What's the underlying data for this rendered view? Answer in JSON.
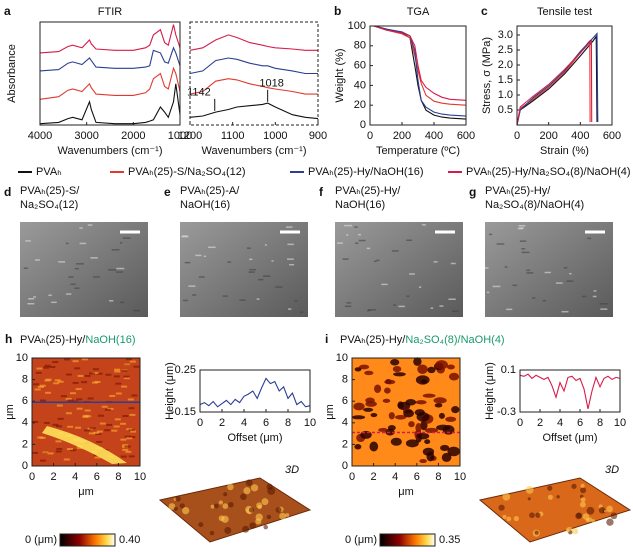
{
  "chart_data": [
    {
      "type": "line",
      "letter": "a",
      "title": "FTIR",
      "xlabel": "Wavenumbers (cm⁻¹)",
      "ylabel": "Absorbance",
      "xlim": [
        4000,
        1000
      ],
      "xticks": [
        4000,
        3000,
        2000,
        1000
      ],
      "ylim": [
        0,
        4
      ],
      "x": [
        4000,
        3600,
        3400,
        3300,
        3100,
        2940,
        2900,
        2800,
        2400,
        2000,
        1740,
        1650,
        1570,
        1420,
        1330,
        1250,
        1140,
        1090,
        1000
      ],
      "series": [
        {
          "name": "PVAₕ",
          "color": "#111111",
          "values": [
            0.05,
            0.1,
            0.25,
            0.3,
            0.2,
            0.9,
            0.6,
            0.1,
            0.05,
            0.05,
            0.1,
            0.15,
            0.2,
            0.7,
            0.5,
            0.3,
            0.9,
            1.6,
            0.4
          ]
        },
        {
          "name": "PVAₕ(25)-S/Na₂SO₄(12)",
          "color": "#e03a2f",
          "values": [
            1.0,
            1.1,
            1.35,
            1.4,
            1.3,
            1.6,
            1.45,
            1.2,
            1.15,
            1.15,
            1.25,
            1.4,
            1.8,
            2.0,
            1.5,
            1.4,
            2.2,
            2.0,
            1.3
          ]
        },
        {
          "name": "PVAₕ(25)-Hy/NaOH(16)",
          "color": "#2b3f93",
          "values": [
            2.1,
            2.15,
            2.4,
            2.45,
            2.35,
            2.6,
            2.5,
            2.25,
            2.2,
            2.2,
            2.25,
            2.3,
            2.9,
            2.8,
            2.45,
            2.4,
            3.0,
            2.8,
            2.3
          ]
        },
        {
          "name": "PVAₕ(25)-Hy/Na₂SO₄(8)/NaOH(4)",
          "color": "#d81b4a",
          "values": [
            2.8,
            2.85,
            3.05,
            3.1,
            3.0,
            3.3,
            3.15,
            2.95,
            2.9,
            2.9,
            3.0,
            3.1,
            3.5,
            3.7,
            3.2,
            3.1,
            3.9,
            3.5,
            3.0
          ]
        }
      ]
    },
    {
      "type": "line",
      "xlabel": "Wavenumbers (cm⁻¹)",
      "frame_style": "dashed",
      "xlim": [
        1200,
        900
      ],
      "xticks": [
        1200,
        1100,
        1000,
        900
      ],
      "ylim": [
        0,
        4
      ],
      "x": [
        1200,
        1170,
        1140,
        1110,
        1090,
        1060,
        1030,
        1018,
        1000,
        960,
        930,
        900
      ],
      "series": [
        {
          "color": "#111111",
          "values": [
            0.3,
            0.35,
            0.5,
            0.6,
            0.7,
            0.75,
            0.8,
            0.85,
            0.7,
            0.4,
            0.3,
            0.25
          ]
        },
        {
          "color": "#e03a2f",
          "values": [
            1.2,
            1.3,
            1.7,
            1.8,
            1.75,
            1.6,
            1.5,
            1.45,
            1.4,
            1.3,
            1.2,
            1.2
          ]
        },
        {
          "color": "#2b3f93",
          "values": [
            2.0,
            2.1,
            2.5,
            2.6,
            2.55,
            2.4,
            2.3,
            2.3,
            2.2,
            2.1,
            2.0,
            2.0
          ]
        },
        {
          "color": "#d81b4a",
          "values": [
            2.9,
            3.0,
            3.3,
            3.5,
            3.4,
            3.2,
            3.1,
            3.05,
            3.0,
            2.95,
            2.9,
            2.9
          ]
        }
      ],
      "annotations": [
        {
          "text": "1142",
          "x": 1142,
          "y": 0.55
        },
        {
          "text": "1018",
          "x": 1018,
          "y": 0.9
        }
      ]
    },
    {
      "type": "line",
      "letter": "b",
      "title": "TGA",
      "xlabel": "Temperature (ºC)",
      "ylabel": "Weight (%)",
      "xlim": [
        0,
        600
      ],
      "xticks": [
        0,
        200,
        400,
        600
      ],
      "ylim": [
        0,
        100
      ],
      "yticks": [
        0,
        20,
        40,
        60,
        80,
        100
      ],
      "x": [
        25,
        100,
        200,
        250,
        280,
        300,
        320,
        350,
        400,
        450,
        500,
        600
      ],
      "series": [
        {
          "color": "#111111",
          "values": [
            100,
            97,
            93,
            88,
            60,
            40,
            25,
            15,
            10,
            8,
            7,
            6
          ]
        },
        {
          "color": "#e03a2f",
          "values": [
            100,
            96,
            92,
            88,
            70,
            55,
            42,
            30,
            24,
            22,
            21,
            20
          ]
        },
        {
          "color": "#2b3f93",
          "values": [
            100,
            97,
            94,
            90,
            75,
            45,
            25,
            18,
            13,
            11,
            10,
            9
          ]
        },
        {
          "color": "#d81b4a",
          "values": [
            100,
            96,
            93,
            90,
            80,
            60,
            45,
            38,
            32,
            28,
            26,
            25
          ]
        }
      ]
    },
    {
      "type": "line",
      "letter": "c",
      "title": "Tensile test",
      "xlabel": "Strain (%)",
      "ylabel": "Stress, σ (MPa)",
      "xlim": [
        0,
        600
      ],
      "xticks": [
        0,
        200,
        400,
        600
      ],
      "ylim": [
        0,
        3.3
      ],
      "yticks": [
        0.5,
        {
          "value": 1,
          "label": "1.0"
        },
        1.5,
        {
          "value": 2,
          "label": "2.0"
        },
        2.5,
        {
          "value": 3,
          "label": "3.0"
        }
      ],
      "series": [
        {
          "color": "#111111",
          "x": [
            0,
            20,
            100,
            200,
            300,
            400,
            480,
            500,
            505
          ],
          "values": [
            0,
            0.5,
            0.8,
            1.2,
            1.7,
            2.3,
            2.8,
            2.95,
            0.1
          ]
        },
        {
          "color": "#e03a2f",
          "x": [
            0,
            20,
            100,
            200,
            300,
            400,
            450,
            460,
            462
          ],
          "values": [
            0,
            0.55,
            0.85,
            1.25,
            1.75,
            2.4,
            2.75,
            2.8,
            0.1
          ]
        },
        {
          "color": "#2b3f93",
          "x": [
            0,
            20,
            100,
            200,
            300,
            400,
            480,
            505,
            510
          ],
          "values": [
            0,
            0.5,
            0.9,
            1.3,
            1.8,
            2.45,
            2.9,
            3.05,
            0.1
          ]
        },
        {
          "color": "#d81b4a",
          "x": [
            0,
            20,
            100,
            200,
            300,
            400,
            460,
            470,
            472
          ],
          "values": [
            0,
            0.6,
            0.95,
            1.35,
            1.85,
            2.4,
            2.75,
            2.8,
            0.1
          ]
        }
      ]
    },
    {
      "type": "map",
      "letter": "h",
      "title_parts": [
        "PVAₕ(25)-Hy/",
        "NaOH(16)"
      ],
      "xlabel": "μm",
      "ylabel": "μm",
      "xlim": [
        0,
        10
      ],
      "xticks": [
        0,
        2,
        4,
        6,
        8,
        10
      ],
      "ylim": [
        0,
        10
      ],
      "yticks": [
        0,
        2,
        4,
        6,
        8,
        10
      ],
      "profile_y": 5.9,
      "colorbar": {
        "lim": [
          0,
          0.4
        ],
        "ticks": [
          {
            "value": 0,
            "label": "0 (μm)"
          },
          {
            "value": 0.4,
            "label": "0.40"
          }
        ]
      },
      "label_3d": "3D"
    },
    {
      "type": "line",
      "xlabel": "Offset (μm)",
      "ylabel": "Height (μm)",
      "xlim": [
        0,
        10
      ],
      "xticks": [
        0,
        2,
        4,
        6,
        8,
        10
      ],
      "ylim": [
        -0.15,
        0.25
      ],
      "yticks": [
        -0.15,
        0.25
      ],
      "x": [
        0,
        0.4,
        0.8,
        1.2,
        1.6,
        2,
        2.4,
        2.8,
        3.2,
        3.6,
        4,
        4.4,
        4.8,
        5.2,
        5.6,
        6,
        6.4,
        6.8,
        7.2,
        7.6,
        8,
        8.4,
        8.8,
        9.2,
        9.6,
        10
      ],
      "series": [
        {
          "color": "#2b3f93",
          "values": [
            -0.08,
            -0.06,
            -0.09,
            -0.05,
            -0.1,
            -0.07,
            -0.04,
            -0.08,
            -0.03,
            -0.06,
            0.0,
            0.02,
            0.05,
            -0.02,
            0.08,
            0.17,
            0.12,
            0.14,
            0.05,
            0.09,
            -0.02,
            0.03,
            -0.08,
            -0.05,
            -0.1,
            -0.09
          ]
        }
      ]
    },
    {
      "type": "map",
      "letter": "i",
      "title_parts": [
        "PVAₕ(25)-Hy/",
        "Na₂SO₄(8)/NaOH(4)"
      ],
      "xlabel": "μm",
      "ylabel": "μm",
      "xlim": [
        0,
        10
      ],
      "xticks": [
        0,
        2,
        4,
        6,
        8,
        10
      ],
      "ylim": [
        0,
        10
      ],
      "yticks": [
        0,
        2,
        4,
        6,
        8,
        10
      ],
      "profile_y": 3.1,
      "colorbar": {
        "lim": [
          0,
          0.35
        ],
        "ticks": [
          {
            "value": 0,
            "label": "0 (μm)"
          },
          0.35
        ]
      },
      "label_3d": "3D"
    },
    {
      "type": "line",
      "xlabel": "Offset (μm)",
      "ylabel": "Height (μm)",
      "xlim": [
        0,
        10
      ],
      "xticks": [
        0,
        2,
        4,
        6,
        8,
        10
      ],
      "ylim": [
        -0.3,
        0.1
      ],
      "yticks": [
        -0.3,
        0.1
      ],
      "x": [
        0,
        0.4,
        0.8,
        1.2,
        1.6,
        2,
        2.4,
        2.8,
        3.2,
        3.6,
        4,
        4.4,
        4.8,
        5.2,
        5.6,
        6,
        6.4,
        6.8,
        7.2,
        7.6,
        8,
        8.4,
        8.8,
        9.2,
        9.6,
        10
      ],
      "series": [
        {
          "color": "#d81b4a",
          "values": [
            0.05,
            0.04,
            0.06,
            0.02,
            0.05,
            0.03,
            0.01,
            0.03,
            -0.05,
            -0.16,
            -0.02,
            -0.1,
            0.03,
            0.04,
            0.0,
            0.02,
            -0.08,
            -0.27,
            -0.1,
            0.03,
            -0.06,
            0.02,
            0.04,
            0.01,
            0.03,
            0.02
          ]
        }
      ]
    }
  ],
  "sem_panels": [
    {
      "letter": "d",
      "label": [
        "PVAₕ(25)-S/",
        "Na₂SO₄(12)"
      ]
    },
    {
      "letter": "e",
      "label": [
        "PVAₕ(25)-A/",
        "NaOH(16)"
      ]
    },
    {
      "letter": "f",
      "label": [
        "PVAₕ(25)-Hy/",
        "NaOH(16)"
      ]
    },
    {
      "letter": "g",
      "label": [
        "PVAₕ(25)-Hy/",
        "Na₂SO₄(8)/NaOH(4)"
      ]
    }
  ]
}
